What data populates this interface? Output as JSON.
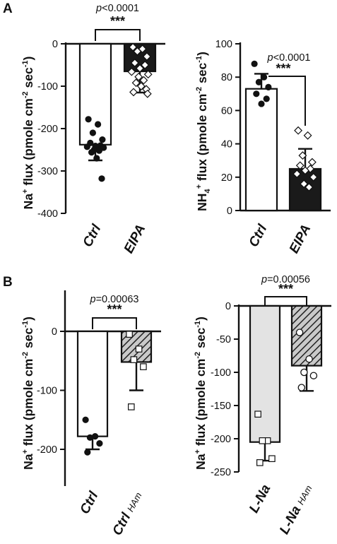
{
  "chart_data": [
    {
      "panel": "A",
      "type": "bar",
      "ylabel": [
        "Na",
        "+",
        " flux (pmole cm",
        "-2",
        " sec",
        "-1",
        ")"
      ],
      "ylim": [
        -400,
        0
      ],
      "yticks": [
        0,
        -100,
        -200,
        -300,
        -400
      ],
      "categories": [
        "Ctrl",
        "EIPA"
      ],
      "values": [
        -238,
        -65
      ],
      "errors": [
        37,
        50
      ],
      "bar_fills": [
        "#ffffff",
        "#1a1a1a"
      ],
      "points": [
        [
          -178,
          -190,
          -210,
          -226,
          -234,
          -240,
          -241,
          -243,
          -245,
          -250,
          -252,
          -256,
          -270,
          -318
        ],
        [
          -8,
          -12,
          -18,
          -30,
          -45,
          -50,
          -58,
          -66,
          -72,
          -78,
          -86,
          -92,
          -100,
          -107,
          -114,
          -118
        ]
      ],
      "point_styles": [
        "circle-filled",
        "diamond-open"
      ],
      "pvalue": "p<0.0001",
      "significance": "***"
    },
    {
      "panel": "A2",
      "type": "bar",
      "ylabel": [
        "NH",
        "4",
        "+",
        " flux (pmole cm",
        "-2",
        " sec",
        "-1",
        ")"
      ],
      "ylim": [
        0,
        100
      ],
      "yticks": [
        0,
        20,
        40,
        60,
        80,
        100
      ],
      "categories": [
        "Ctrl",
        "EIPA"
      ],
      "values": [
        73,
        25
      ],
      "errors": [
        9,
        12
      ],
      "bar_fills": [
        "#ffffff",
        "#1a1a1a"
      ],
      "points": [
        [
          88,
          80,
          77,
          74,
          70,
          67,
          64
        ],
        [
          48,
          45,
          33,
          29,
          27,
          25,
          24,
          22,
          20,
          16,
          14
        ]
      ],
      "point_styles": [
        "circle-filled",
        "diamond-open"
      ],
      "pvalue": "p<0.0001",
      "significance": "***"
    },
    {
      "panel": "B",
      "type": "bar",
      "ylabel": [
        "Na",
        "+",
        " flux (pmole cm",
        "-2",
        " sec",
        "-1",
        ")"
      ],
      "ylim": [
        -250,
        50
      ],
      "yticks": [
        0,
        -100,
        -200
      ],
      "categories": [
        [
          "Ctrl",
          ""
        ],
        [
          "Ctrl",
          "HAm"
        ]
      ],
      "values": [
        -178,
        -52
      ],
      "errors": [
        22,
        48
      ],
      "bar_fills": [
        "#ffffff",
        "hatch"
      ],
      "points": [
        [
          -150,
          -178,
          -180,
          -190,
          -205
        ],
        [
          -5,
          -30,
          -48,
          -60,
          -128
        ]
      ],
      "point_styles": [
        "circle-filled",
        "square-open"
      ],
      "pvalue": "p=0.00063",
      "significance": "***"
    },
    {
      "panel": "B2",
      "type": "bar",
      "ylabel": [
        "Na",
        "+",
        " flux (pmole cm",
        "-2",
        " sec",
        "-1",
        ")"
      ],
      "ylim": [
        -250,
        0
      ],
      "yticks": [
        0,
        -50,
        -100,
        -150,
        -200,
        -250
      ],
      "categories": [
        [
          "L-Na",
          ""
        ],
        [
          "L-Na",
          "HAm"
        ]
      ],
      "values": [
        -205,
        -90
      ],
      "errors": [
        28,
        38
      ],
      "bar_fills": [
        "#e3e3e3",
        "hatch"
      ],
      "points": [
        [
          -163,
          -203,
          -203,
          -230,
          -236
        ],
        [
          -40,
          -80,
          -100,
          -105,
          -123
        ]
      ],
      "point_styles": [
        "square-open",
        "circle-open"
      ],
      "pvalue": "p=0.00056",
      "significance": "***"
    }
  ]
}
